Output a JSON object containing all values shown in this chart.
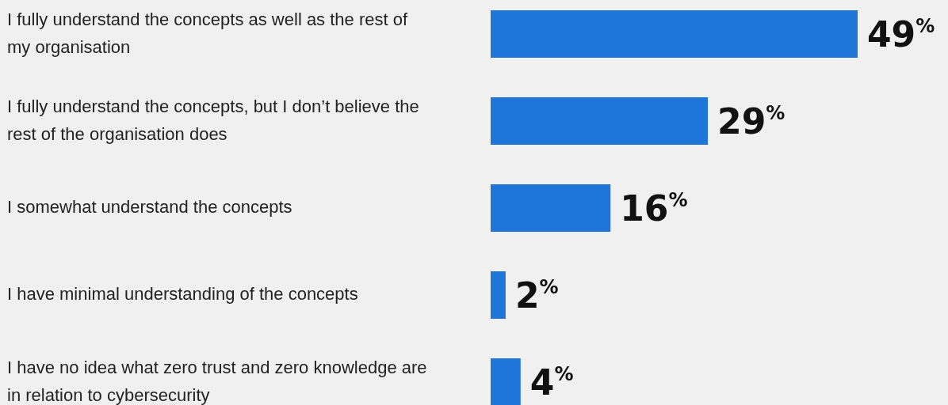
{
  "chart_data": {
    "type": "bar",
    "orientation": "horizontal",
    "categories": [
      "I fully understand the concepts as well as the rest of my organisation",
      "I fully understand the concepts, but I don’t believe the rest of the organisation does",
      "I somewhat understand the concepts",
      "I have minimal understanding of the concepts",
      "I have no idea what zero trust and zero knowledge are in relation to cybersecurity"
    ],
    "values": [
      49,
      29,
      16,
      2,
      4
    ],
    "color": "#1e76d9",
    "value_labels": [
      "49$^{%}$",
      "29$^{%}$",
      "16$^{%}$",
      "2$^{%}$",
      "4$^{%}$"
    ]
  }
}
